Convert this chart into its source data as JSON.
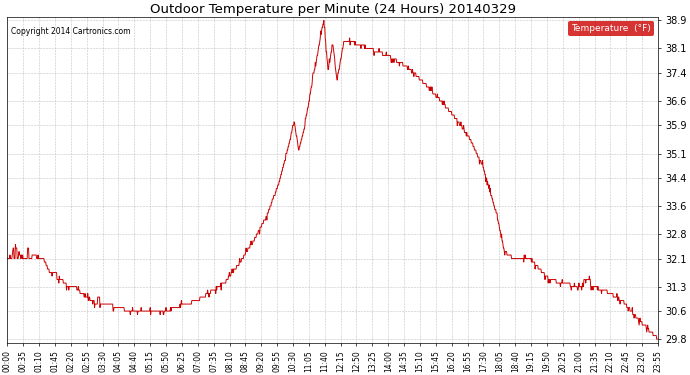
{
  "title": "Outdoor Temperature per Minute (24 Hours) 20140329",
  "copyright_text": "Copyright 2014 Cartronics.com",
  "legend_label": "Temperature  (°F)",
  "line_color": "#cc0000",
  "background_color": "#ffffff",
  "grid_color": "#aaaaaa",
  "yticks": [
    29.8,
    30.6,
    31.3,
    32.1,
    32.8,
    33.6,
    34.4,
    35.1,
    35.9,
    36.6,
    37.4,
    38.1,
    38.9
  ],
  "xtick_labels": [
    "00:00",
    "00:35",
    "01:10",
    "01:45",
    "02:20",
    "02:55",
    "03:30",
    "04:05",
    "04:40",
    "05:15",
    "05:50",
    "06:25",
    "07:00",
    "07:35",
    "08:10",
    "08:45",
    "09:20",
    "09:55",
    "10:30",
    "11:05",
    "11:40",
    "12:15",
    "12:50",
    "13:25",
    "14:00",
    "14:35",
    "15:10",
    "15:45",
    "16:20",
    "16:55",
    "17:30",
    "18:05",
    "18:40",
    "19:15",
    "19:50",
    "20:25",
    "21:00",
    "21:35",
    "22:10",
    "22:45",
    "23:20",
    "23:55"
  ],
  "figsize": [
    6.9,
    3.75
  ],
  "dpi": 100
}
